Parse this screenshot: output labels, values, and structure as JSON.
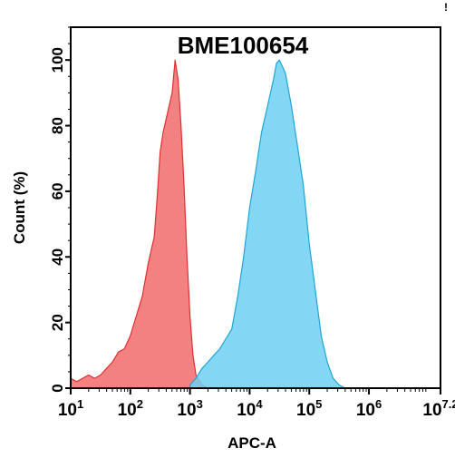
{
  "chart_data": {
    "type": "area",
    "title": "BME100654",
    "xlabel": "APC-A",
    "ylabel": "Count  (%)",
    "x_scale": "log10",
    "xlim": [
      1,
      7.2
    ],
    "ylim": [
      0,
      110
    ],
    "y_ticks": [
      0,
      20,
      40,
      60,
      80,
      100
    ],
    "x_ticks": [
      {
        "base": "10",
        "exp": "1"
      },
      {
        "base": "10",
        "exp": "2"
      },
      {
        "base": "10",
        "exp": "3"
      },
      {
        "base": "10",
        "exp": "4"
      },
      {
        "base": "10",
        "exp": "5"
      },
      {
        "base": "10",
        "exp": "6"
      },
      {
        "base": "10",
        "exp": "7.2"
      }
    ],
    "grid": false,
    "legend": "none",
    "series": [
      {
        "color": "#f26b6b",
        "line_color": "#e03030",
        "points": [
          [
            1.0,
            3
          ],
          [
            1.1,
            2
          ],
          [
            1.2,
            3
          ],
          [
            1.3,
            4
          ],
          [
            1.4,
            3
          ],
          [
            1.5,
            4
          ],
          [
            1.6,
            6
          ],
          [
            1.7,
            8
          ],
          [
            1.8,
            11
          ],
          [
            1.9,
            12
          ],
          [
            2.0,
            16
          ],
          [
            2.1,
            22
          ],
          [
            2.2,
            28
          ],
          [
            2.3,
            38
          ],
          [
            2.4,
            46
          ],
          [
            2.45,
            58
          ],
          [
            2.5,
            72
          ],
          [
            2.55,
            78
          ],
          [
            2.6,
            82
          ],
          [
            2.65,
            86
          ],
          [
            2.7,
            90
          ],
          [
            2.75,
            100
          ],
          [
            2.8,
            94
          ],
          [
            2.85,
            80
          ],
          [
            2.9,
            62
          ],
          [
            2.95,
            40
          ],
          [
            3.0,
            22
          ],
          [
            3.05,
            10
          ],
          [
            3.1,
            4
          ],
          [
            3.2,
            1
          ],
          [
            3.3,
            0
          ]
        ]
      },
      {
        "color": "#6fd0f2",
        "line_color": "#1ea6d6",
        "points": [
          [
            3.0,
            1
          ],
          [
            3.1,
            3
          ],
          [
            3.2,
            6
          ],
          [
            3.3,
            8
          ],
          [
            3.4,
            10
          ],
          [
            3.5,
            12
          ],
          [
            3.6,
            15
          ],
          [
            3.7,
            18
          ],
          [
            3.8,
            28
          ],
          [
            3.9,
            40
          ],
          [
            4.0,
            55
          ],
          [
            4.1,
            66
          ],
          [
            4.2,
            78
          ],
          [
            4.3,
            86
          ],
          [
            4.4,
            94
          ],
          [
            4.45,
            99
          ],
          [
            4.5,
            100
          ],
          [
            4.55,
            98
          ],
          [
            4.6,
            96
          ],
          [
            4.7,
            86
          ],
          [
            4.8,
            74
          ],
          [
            4.9,
            62
          ],
          [
            5.0,
            44
          ],
          [
            5.1,
            30
          ],
          [
            5.2,
            16
          ],
          [
            5.3,
            8
          ],
          [
            5.4,
            3
          ],
          [
            5.5,
            1
          ],
          [
            5.6,
            0
          ]
        ]
      }
    ]
  },
  "top_right_mark": "!"
}
